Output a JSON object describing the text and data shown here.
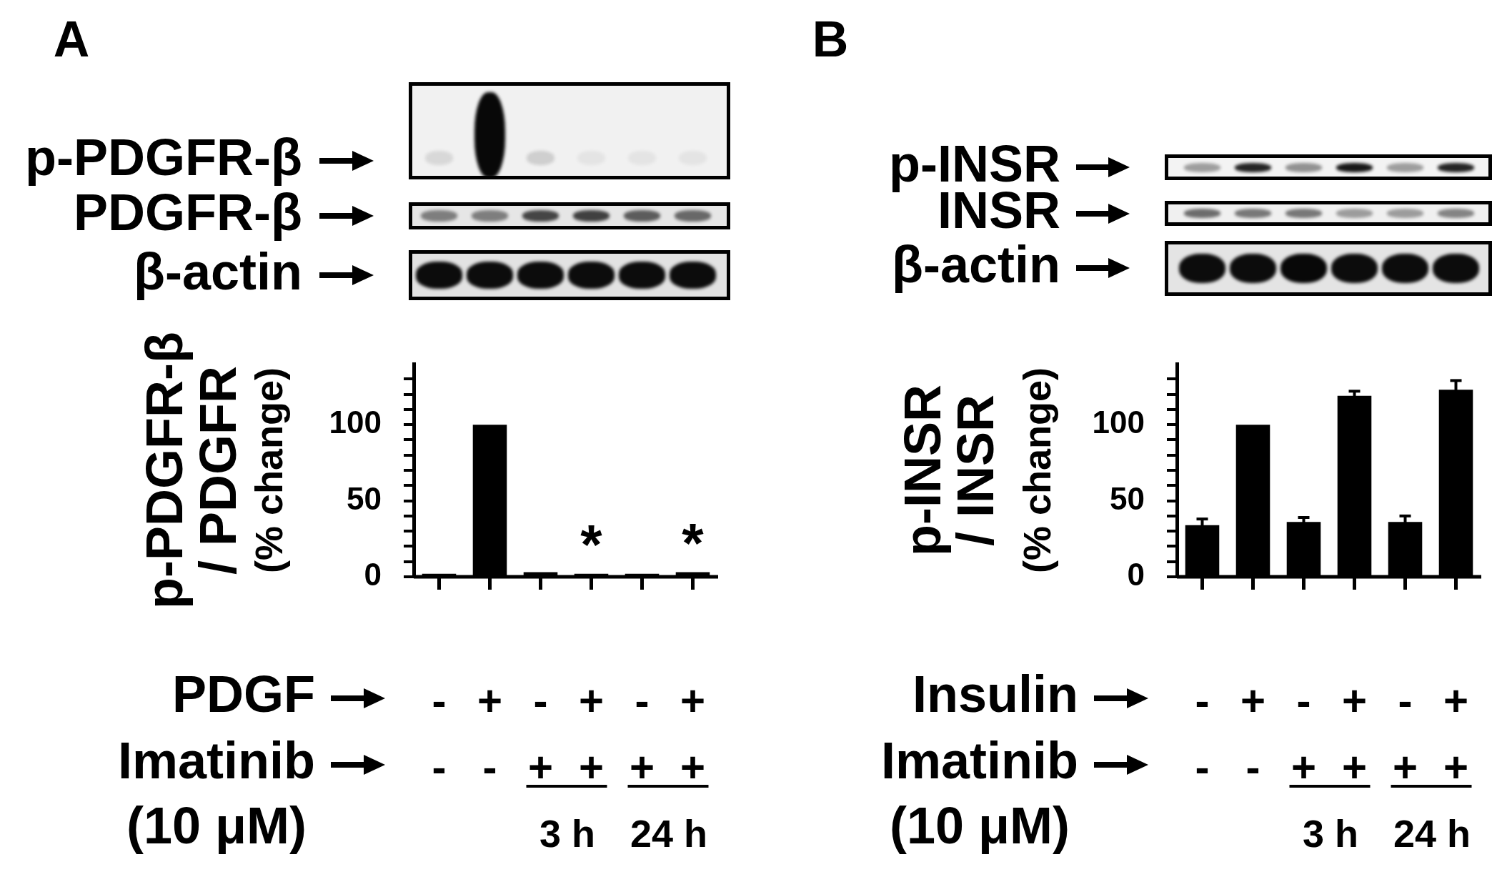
{
  "chart_data": [
    {
      "type": "bar",
      "title": "A",
      "ylabel": "p-PDGFR-β\n/ PDGFR\n(% change)",
      "categories": [
        "-\n-",
        "+\n-",
        "-\n+",
        "+\n+",
        "-\n+",
        "+\n+"
      ],
      "values": [
        2,
        100,
        3,
        2,
        2,
        3
      ],
      "color": "#000000",
      "value_labels": [
        null,
        null,
        null,
        "*",
        null,
        "*"
      ],
      "ylim": [
        0,
        140
      ],
      "yticks": [
        0,
        {
          "value": 10,
          "label": null
        },
        {
          "value": 20,
          "label": null
        },
        {
          "value": 30,
          "label": null
        },
        {
          "value": 40,
          "label": null
        },
        50,
        {
          "value": 60,
          "label": null
        },
        {
          "value": 70,
          "label": null
        },
        {
          "value": 80,
          "label": null
        },
        {
          "value": 90,
          "label": null
        },
        100,
        {
          "value": 110,
          "label": null
        },
        {
          "value": 120,
          "label": null
        },
        {
          "value": 130,
          "label": null
        }
      ],
      "annotations": [
        "p-PDGFR-β",
        "PDGFR-β",
        "β-actin",
        "PDGF",
        "Imatinib",
        "(10 μM)",
        "3 h",
        "24 h"
      ]
    },
    {
      "type": "bar",
      "title": "B",
      "ylabel": "p-INSR\n/ INSR\n(% change)",
      "categories": [
        "-\n-",
        "+\n-",
        "-\n+",
        "+\n+",
        "-\n+",
        "+\n+"
      ],
      "values": [
        34,
        100,
        36,
        119,
        36,
        123
      ],
      "errors": [
        4,
        null,
        3,
        3,
        4,
        6
      ],
      "color": "#000000",
      "ylim": [
        0,
        140
      ],
      "yticks": [
        0,
        {
          "value": 10,
          "label": null
        },
        {
          "value": 20,
          "label": null
        },
        {
          "value": 30,
          "label": null
        },
        {
          "value": 40,
          "label": null
        },
        50,
        {
          "value": 60,
          "label": null
        },
        {
          "value": 70,
          "label": null
        },
        {
          "value": 80,
          "label": null
        },
        {
          "value": 90,
          "label": null
        },
        100,
        {
          "value": 110,
          "label": null
        },
        {
          "value": 120,
          "label": null
        },
        {
          "value": 130,
          "label": null
        }
      ],
      "annotations": [
        "p-INSR",
        "INSR",
        "β-actin",
        "Insulin",
        "Imatinib",
        "(10 μM)",
        "3 h",
        "24 h"
      ]
    }
  ]
}
